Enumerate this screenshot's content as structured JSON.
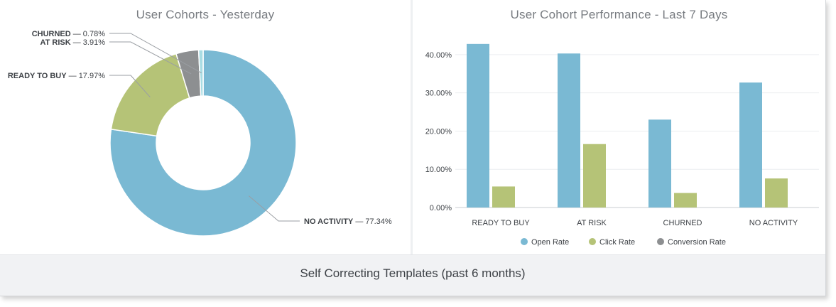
{
  "footer": {
    "title": "Self Correcting Templates (past 6 months)"
  },
  "chart_data": [
    {
      "type": "pie",
      "donut": true,
      "title": "User Cohorts - Yesterday",
      "slices": [
        {
          "label": "NO ACTIVITY",
          "value_text": "77.34%",
          "value": 77.34,
          "color": "#7ab9d3"
        },
        {
          "label": "READY TO BUY",
          "value_text": "17.97%",
          "value": 17.97,
          "color": "#b5c377"
        },
        {
          "label": "AT RISK",
          "value_text": "3.91%",
          "value": 3.91,
          "color": "#8d8f91"
        },
        {
          "label": "CHURNED",
          "value_text": "0.78%",
          "value": 0.78,
          "color": "#a9dce3"
        }
      ]
    },
    {
      "type": "bar",
      "title": "User Cohort Performance - Last 7 Days",
      "categories": [
        "READY TO BUY",
        "AT RISK",
        "CHURNED",
        "NO ACTIVITY"
      ],
      "series": [
        {
          "name": "Open Rate",
          "color": "#7ab9d3",
          "values": [
            42.8,
            40.3,
            23.0,
            32.7
          ]
        },
        {
          "name": "Click Rate",
          "color": "#b5c377",
          "values": [
            5.5,
            16.6,
            3.8,
            7.6
          ]
        },
        {
          "name": "Conversion Rate",
          "color": "#8d8f91",
          "values": [
            0,
            0,
            0,
            0
          ]
        }
      ],
      "y_ticks": [
        "0.00%",
        "10.00%",
        "20.00%",
        "30.00%",
        "40.00%"
      ],
      "ylim": [
        0,
        45
      ],
      "grid": true,
      "legend": "bottom"
    }
  ]
}
